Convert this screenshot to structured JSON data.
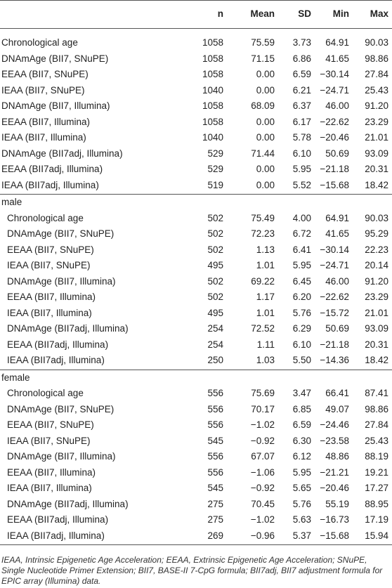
{
  "table": {
    "header": [
      "n",
      "Mean",
      "SD",
      "Min",
      "Max"
    ],
    "sections": [
      {
        "rows": [
          [
            "Chronological age",
            "1058",
            "75.59",
            "3.73",
            "64.91",
            "90.03"
          ],
          [
            "DNAmAge (BII7, SNuPE)",
            "1058",
            "71.15",
            "6.86",
            "41.65",
            "98.86"
          ],
          [
            "EEAA (BII7, SNuPE)",
            "1058",
            "0.00",
            "6.59",
            "−30.14",
            "27.84"
          ],
          [
            "IEAA (BII7, SNuPE)",
            "1040",
            "0.00",
            "6.21",
            "−24.71",
            "25.43"
          ],
          [
            "DNAmAge (BII7, Illumina)",
            "1058",
            "68.09",
            "6.37",
            "46.00",
            "91.20"
          ],
          [
            "EEAA (BII7, Illumina)",
            "1058",
            "0.00",
            "6.17",
            "−22.62",
            "23.29"
          ],
          [
            "IEAA (BII7, Illumina)",
            "1040",
            "0.00",
            "5.78",
            "−20.46",
            "21.01"
          ],
          [
            "DNAmAge (BII7adj, Illumina)",
            "529",
            "71.44",
            "6.10",
            "50.69",
            "93.09"
          ],
          [
            "EEAA (BII7adj, Illumina)",
            "529",
            "0.00",
            "5.95",
            "−21.18",
            "20.31"
          ],
          [
            "IEAA (BII7adj, Illumina)",
            "519",
            "0.00",
            "5.52",
            "−15.68",
            "18.42"
          ]
        ]
      },
      {
        "label": "male",
        "rows": [
          [
            "Chronological age",
            "502",
            "75.49",
            "4.00",
            "64.91",
            "90.03"
          ],
          [
            "DNAmAge (BII7, SNuPE)",
            "502",
            "72.23",
            "6.72",
            "41.65",
            "95.29"
          ],
          [
            "EEAA (BII7, SNuPE)",
            "502",
            "1.13",
            "6.41",
            "−30.14",
            "22.23"
          ],
          [
            "IEAA (BII7, SNuPE)",
            "495",
            "1.01",
            "5.95",
            "−24.71",
            "20.14"
          ],
          [
            "DNAmAge (BII7, Illumina)",
            "502",
            "69.22",
            "6.45",
            "46.00",
            "91.20"
          ],
          [
            "EEAA (BII7, Illumina)",
            "502",
            "1.17",
            "6.20",
            "−22.62",
            "23.29"
          ],
          [
            "IEAA (BII7, Illumina)",
            "495",
            "1.01",
            "5.76",
            "−15.72",
            "21.01"
          ],
          [
            "DNAmAge (BII7adj, Illumina)",
            "254",
            "72.52",
            "6.29",
            "50.69",
            "93.09"
          ],
          [
            "EEAA (BII7adj, Illumina)",
            "254",
            "1.11",
            "6.10",
            "−21.18",
            "20.31"
          ],
          [
            "IEAA (BII7adj, Illumina)",
            "250",
            "1.03",
            "5.50",
            "−14.36",
            "18.42"
          ]
        ]
      },
      {
        "label": "female",
        "rows": [
          [
            "Chronological age",
            "556",
            "75.69",
            "3.47",
            "66.41",
            "87.41"
          ],
          [
            "DNAmAge (BII7, SNuPE)",
            "556",
            "70.17",
            "6.85",
            "49.07",
            "98.86"
          ],
          [
            "EEAA (BII7, SNuPE)",
            "556",
            "−1.02",
            "6.59",
            "−24.46",
            "27.84"
          ],
          [
            "IEAA (BII7, SNuPE)",
            "545",
            "−0.92",
            "6.30",
            "−23.58",
            "25.43"
          ],
          [
            "DNAmAge (BII7, Illumina)",
            "556",
            "67.07",
            "6.12",
            "48.86",
            "88.19"
          ],
          [
            "EEAA (BII7, Illumina)",
            "556",
            "−1.06",
            "5.95",
            "−21.21",
            "19.21"
          ],
          [
            "IEAA (BII7, Illumina)",
            "545",
            "−0.92",
            "5.65",
            "−20.46",
            "17.27"
          ],
          [
            "DNAmAge (BII7adj, Illumina)",
            "275",
            "70.45",
            "5.76",
            "55.19",
            "88.95"
          ],
          [
            "EEAA (BII7adj, Illumina)",
            "275",
            "−1.02",
            "5.63",
            "−16.73",
            "17.19"
          ],
          [
            "IEAA (BII7adj, Illumina)",
            "269",
            "−0.96",
            "5.37",
            "−15.68",
            "15.94"
          ]
        ]
      }
    ],
    "footnote": "IEAA, Intrinsic Epigenetic Age Acceleration; EEAA, Extrinsic Epigenetic Age Acceleration; SNuPE, Single Nucleotide Primer Extension; BII7, BASE-II 7-CpG formula; BII7adj, BII7 adjustment formula for EPIC array (Illumina) data."
  }
}
